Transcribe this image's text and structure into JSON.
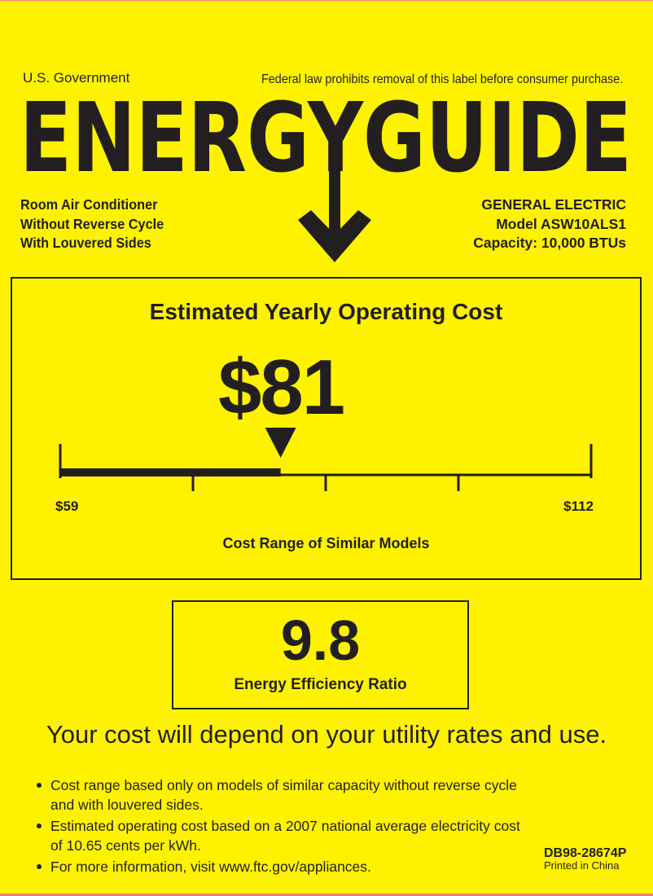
{
  "header": {
    "government": "U.S. Government",
    "notice": "Federal law prohibits removal of this label before consumer purchase.",
    "logo": "ENERGYGUIDE"
  },
  "product": {
    "lines": [
      "Room Air Conditioner",
      "Without Reverse Cycle",
      "With Louvered Sides"
    ]
  },
  "manufacturer": {
    "brand": "GENERAL ELECTRIC",
    "model": "Model ASW10ALS1",
    "capacity": "Capacity: 10,000 BTUs"
  },
  "cost": {
    "title": "Estimated Yearly Operating Cost",
    "value": "$81",
    "amount": 81,
    "min": 59,
    "max": 112,
    "min_label": "$59",
    "max_label": "$112",
    "range_label": "Cost Range of Similar Models"
  },
  "efficiency": {
    "value": "9.8",
    "label": "Energy Efficiency Ratio"
  },
  "tagline": "Your cost will depend on your utility rates and use.",
  "notes": [
    "Cost range based only on models of similar capacity without reverse cycle and with louvered sides.",
    "Estimated operating cost based on a 2007 national average electricity cost of 10.65 cents per kWh.",
    "For more information, visit www.ftc.gov/appliances."
  ],
  "footer": {
    "code": "DB98-28674P",
    "printed": "Printed in China"
  },
  "colors": {
    "background": "#fff200",
    "ink": "#231f20"
  }
}
